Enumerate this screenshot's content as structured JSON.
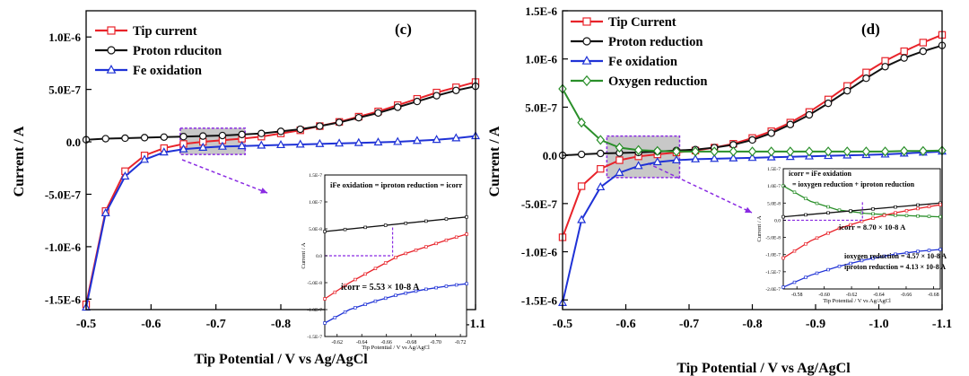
{
  "chart_data": [
    {
      "panel": "(c)",
      "type": "line",
      "xlabel": "Tip Potential / V vs Ag/AgCl",
      "ylabel": "Current / A",
      "x_ticks": [
        "-0.5",
        "-0.6",
        "-0.7",
        "-0.8",
        "-0.9",
        "-1.0",
        "-1.1"
      ],
      "y_ticks": [
        "1.0E-6",
        "5.0E-7",
        "0.0",
        "-5.0E-7",
        "-1.0E-6",
        "-1.5E-6"
      ],
      "xlim": [
        -0.5,
        -1.1
      ],
      "ylim": [
        -1.6e-06,
        1.25e-06
      ],
      "legend_position": "top-left",
      "series": [
        {
          "name": "Tip current",
          "color": "#e8232a",
          "marker": "square",
          "x": [
            -0.5,
            -0.53,
            -0.56,
            -0.59,
            -0.62,
            -0.65,
            -0.68,
            -0.71,
            -0.74,
            -0.77,
            -0.8,
            -0.83,
            -0.86,
            -0.89,
            -0.92,
            -0.95,
            -0.98,
            -1.01,
            -1.04,
            -1.07,
            -1.1
          ],
          "y": [
            -1.55e-06,
            -6.6e-07,
            -2.8e-07,
            -1.3e-07,
            -6e-08,
            -2e-08,
            0,
            1.5e-08,
            3e-08,
            5e-08,
            8e-08,
            1.1e-07,
            1.5e-07,
            1.9e-07,
            2.4e-07,
            2.9e-07,
            3.5e-07,
            4.1e-07,
            4.7e-07,
            5.2e-07,
            5.7e-07
          ]
        },
        {
          "name": "Proton rduciton",
          "color": "#111111",
          "marker": "circle",
          "x": [
            -0.5,
            -0.53,
            -0.56,
            -0.59,
            -0.62,
            -0.65,
            -0.68,
            -0.71,
            -0.74,
            -0.77,
            -0.8,
            -0.83,
            -0.86,
            -0.89,
            -0.92,
            -0.95,
            -0.98,
            -1.01,
            -1.04,
            -1.07,
            -1.1
          ],
          "y": [
            2e-08,
            3e-08,
            3.5e-08,
            4e-08,
            4.5e-08,
            5e-08,
            5.5e-08,
            6e-08,
            7e-08,
            8e-08,
            1e-07,
            1.2e-07,
            1.5e-07,
            1.85e-07,
            2.3e-07,
            2.75e-07,
            3.3e-07,
            3.85e-07,
            4.4e-07,
            4.9e-07,
            5.3e-07
          ]
        },
        {
          "name": "Fe oxidation",
          "color": "#1f32d6",
          "marker": "triangle",
          "x": [
            -0.5,
            -0.53,
            -0.56,
            -0.59,
            -0.62,
            -0.65,
            -0.68,
            -0.71,
            -0.74,
            -0.77,
            -0.8,
            -0.83,
            -0.86,
            -0.89,
            -0.92,
            -0.95,
            -0.98,
            -1.01,
            -1.04,
            -1.07,
            -1.1
          ],
          "y": [
            -1.58e-06,
            -6.8e-07,
            -3.3e-07,
            -1.7e-07,
            -1e-07,
            -7e-08,
            -5.5e-08,
            -4.5e-08,
            -4e-08,
            -3.5e-08,
            -3e-08,
            -2.5e-08,
            -2e-08,
            -1.5e-08,
            -1e-08,
            -5e-09,
            0,
            1e-08,
            2e-08,
            3.5e-08,
            5.5e-08
          ]
        }
      ],
      "inset": {
        "xlim": [
          -0.61,
          -0.725
        ],
        "ylim": [
          -1.5e-07,
          1.5e-07
        ],
        "x_ticks": [
          "-0.62",
          "-0.64",
          "-0.66",
          "-0.68",
          "-0.70",
          "-0.72"
        ],
        "y_ticks": [
          "1.5E-7",
          "1.0E-7",
          "5.0E-8",
          "0.0",
          "-5.0E-8",
          "-1.0E-7",
          "-1.5E-7"
        ],
        "xlabel": "Tip Potential / V vs Ag/AgCl",
        "ylabel": "Current / A",
        "equation": "iFe oxidation = iproton reduction = icorr",
        "result": "icorr = 5.53 × 10-8 A",
        "series": [
          {
            "color": "#111111",
            "x": [
              -0.61,
              -0.725
            ],
            "y": [
              4.5e-08,
              7.2e-08
            ]
          },
          {
            "color": "#e8232a",
            "x": [
              -0.61,
              -0.63,
              -0.65,
              -0.67,
              -0.69,
              -0.71,
              -0.725
            ],
            "y": [
              -8e-08,
              -5e-08,
              -2.5e-08,
              0,
              1.5e-08,
              3e-08,
              4e-08
            ]
          },
          {
            "color": "#1f32d6",
            "x": [
              -0.61,
              -0.63,
              -0.65,
              -0.67,
              -0.69,
              -0.71,
              -0.725
            ],
            "y": [
              -1.25e-07,
              -1e-07,
              -8.5e-08,
              -7.2e-08,
              -6.3e-08,
              -5.6e-08,
              -5.2e-08
            ]
          }
        ]
      }
    },
    {
      "panel": "(d)",
      "type": "line",
      "xlabel": "Tip Potential / V vs Ag/AgCl",
      "ylabel": "Current / A",
      "x_ticks": [
        "-0.5",
        "-0.6",
        "-0.7",
        "-0.8",
        "-0.9",
        "-1.0",
        "-1.1"
      ],
      "y_ticks": [
        "1.5E-6",
        "1.0E-6",
        "5.0E-7",
        "0.0",
        "-5.0E-7",
        "-1.0E-6",
        "-1.5E-6"
      ],
      "xlim": [
        -0.5,
        -1.1
      ],
      "ylim": [
        -1.6e-06,
        1.5e-06
      ],
      "legend_position": "top-left",
      "series": [
        {
          "name": "Tip Current",
          "color": "#e8232a",
          "marker": "square",
          "x": [
            -0.5,
            -0.53,
            -0.56,
            -0.59,
            -0.62,
            -0.65,
            -0.68,
            -0.71,
            -0.74,
            -0.77,
            -0.8,
            -0.83,
            -0.86,
            -0.89,
            -0.92,
            -0.95,
            -0.98,
            -1.01,
            -1.04,
            -1.07,
            -1.1
          ],
          "y": [
            -8.5e-07,
            -3.2e-07,
            -1.4e-07,
            -5e-08,
            -1e-08,
            1e-08,
            3e-08,
            5e-08,
            8e-08,
            1.2e-07,
            1.8e-07,
            2.5e-07,
            3.4e-07,
            4.5e-07,
            5.8e-07,
            7.2e-07,
            8.6e-07,
            9.8e-07,
            1.08e-06,
            1.17e-06,
            1.25e-06
          ]
        },
        {
          "name": "Proton reduction",
          "color": "#111111",
          "marker": "circle",
          "x": [
            -0.5,
            -0.53,
            -0.56,
            -0.59,
            -0.62,
            -0.65,
            -0.68,
            -0.71,
            -0.74,
            -0.77,
            -0.8,
            -0.83,
            -0.86,
            -0.89,
            -0.92,
            -0.95,
            -0.98,
            -1.01,
            -1.04,
            -1.07,
            -1.1
          ],
          "y": [
            0,
            1e-08,
            2e-08,
            2.5e-08,
            3e-08,
            4e-08,
            5e-08,
            6e-08,
            8e-08,
            1.1e-07,
            1.6e-07,
            2.3e-07,
            3.2e-07,
            4.2e-07,
            5.4e-07,
            6.7e-07,
            8e-07,
            9.2e-07,
            1.01e-06,
            1.08e-06,
            1.14e-06
          ]
        },
        {
          "name": "Fe oxidation",
          "color": "#1f32d6",
          "marker": "triangle",
          "x": [
            -0.5,
            -0.53,
            -0.56,
            -0.59,
            -0.62,
            -0.65,
            -0.68,
            -0.71,
            -0.74,
            -0.77,
            -0.8,
            -0.83,
            -0.86,
            -0.89,
            -0.92,
            -0.95,
            -0.98,
            -1.01,
            -1.04,
            -1.07,
            -1.1
          ],
          "y": [
            -1.53e-06,
            -6.7e-07,
            -3.3e-07,
            -1.8e-07,
            -1.1e-07,
            -7e-08,
            -5e-08,
            -4e-08,
            -3.5e-08,
            -3e-08,
            -2.5e-08,
            -2e-08,
            -1.5e-08,
            -1e-08,
            -5e-09,
            0,
            5e-09,
            1e-08,
            2e-08,
            3e-08,
            4e-08
          ]
        },
        {
          "name": "Oxygen reduction",
          "color": "#2a8f2a",
          "marker": "diamond",
          "x": [
            -0.5,
            -0.53,
            -0.56,
            -0.59,
            -0.62,
            -0.65,
            -0.68,
            -0.71,
            -0.74,
            -0.77,
            -0.8,
            -0.83,
            -0.86,
            -0.89,
            -0.92,
            -0.95,
            -0.98,
            -1.01,
            -1.04,
            -1.07,
            -1.1
          ],
          "y": [
            6.9e-07,
            3.4e-07,
            1.6e-07,
            8e-08,
            5.5e-08,
            4.5e-08,
            4e-08,
            4e-08,
            4e-08,
            4e-08,
            4e-08,
            4e-08,
            4e-08,
            4e-08,
            4e-08,
            4e-08,
            4e-08,
            4e-08,
            4.5e-08,
            4.5e-08,
            5e-08
          ]
        }
      ],
      "inset": {
        "xlim": [
          -0.57,
          -0.685
        ],
        "ylim": [
          -2e-07,
          1.5e-07
        ],
        "x_ticks": [
          "-0.58",
          "-0.60",
          "-0.62",
          "-0.64",
          "-0.66",
          "-0.68"
        ],
        "y_ticks": [
          "1.5E-7",
          "1.0E-7",
          "5.0E-8",
          "0.0",
          "-5.0E-8",
          "-1.0E-7",
          "-1.5E-7",
          "-2.0E-7"
        ],
        "xlabel": "Tip Potential / V vs Ag/AgCl",
        "ylabel": "Current / A",
        "equation1": "icorr = iFe oxidation",
        "equation2": "= ioxygen reduction + iproton reduction",
        "result": "icorr = 8.70 × 10-8 A",
        "note1": "ioxygen reduction = 4.57 × 10-8 A",
        "note2": "iproton reduction = 4.13 × 10-8 A",
        "series": [
          {
            "color": "#2a8f2a",
            "x": [
              -0.57,
              -0.59,
              -0.61,
              -0.63,
              -0.65,
              -0.67,
              -0.685
            ],
            "y": [
              1e-07,
              5.5e-08,
              3e-08,
              2e-08,
              1.5e-08,
              1.2e-08,
              1e-08
            ]
          },
          {
            "color": "#111111",
            "x": [
              -0.57,
              -0.685
            ],
            "y": [
              1e-08,
              5e-08
            ]
          },
          {
            "color": "#e8232a",
            "x": [
              -0.57,
              -0.59,
              -0.61,
              -0.63,
              -0.65,
              -0.67,
              -0.685
            ],
            "y": [
              -1.1e-07,
              -6e-08,
              -2.5e-08,
              0,
              2e-08,
              3.5e-08,
              4.5e-08
            ]
          },
          {
            "color": "#1f32d6",
            "x": [
              -0.57,
              -0.59,
              -0.61,
              -0.63,
              -0.65,
              -0.67,
              -0.685
            ],
            "y": [
              -1.95e-07,
              -1.6e-07,
              -1.35e-07,
              -1.15e-07,
              -1e-07,
              -9e-08,
              -8.5e-08
            ]
          }
        ]
      }
    }
  ]
}
